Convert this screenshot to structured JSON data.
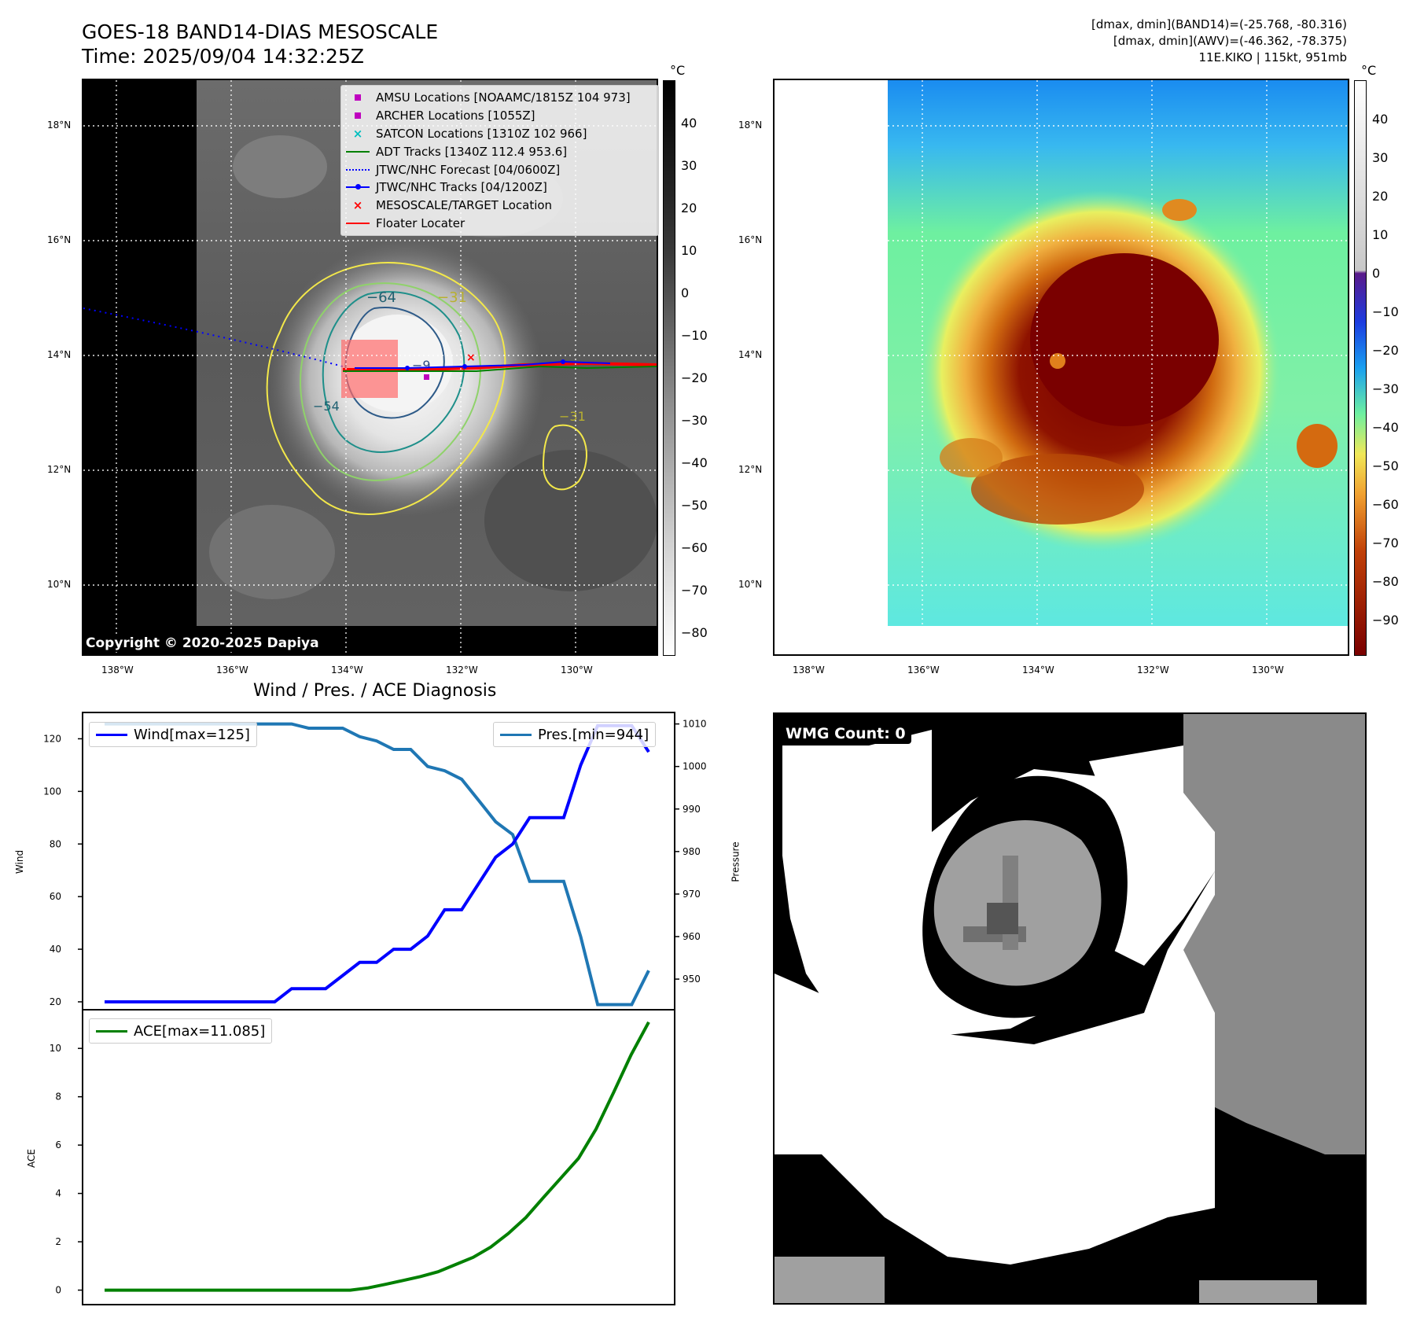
{
  "header": {
    "title": "GOES-18 BAND14-DIAS MESOSCALE",
    "time": "Time: 2025/09/04 14:32:25Z",
    "dmax_band14": "[dmax, dmin](BAND14)=(-25.768, -80.316)",
    "dmax_awv": "[dmax, dmin](AWV)=(-46.362, -78.375)",
    "storm": "11E.KIKO | 115kt, 951mb"
  },
  "map_left": {
    "lat_labels": [
      "18°N",
      "16°N",
      "14°N",
      "12°N",
      "10°N"
    ],
    "lon_labels": [
      "138°W",
      "136°W",
      "134°W",
      "132°W",
      "130°W"
    ],
    "copyright": "Copyright © 2020-2025 Dapiya",
    "colorbar_unit": "°C",
    "colorbar_ticks": [
      "40",
      "30",
      "20",
      "10",
      "0",
      "−10",
      "−20",
      "−30",
      "−40",
      "−50",
      "−60",
      "−70",
      "−80"
    ],
    "contour_labels": [
      "−64",
      "−31",
      "−54",
      "−9",
      "−31"
    ],
    "legend": [
      {
        "label": "AMSU Locations [NOAAMC/1815Z 104 973]",
        "icon": "square-marker",
        "color": "#bf00bf"
      },
      {
        "label": "ARCHER Locations [1055Z]",
        "icon": "square-marker",
        "color": "#bf00bf"
      },
      {
        "label": "SATCON Locations [1310Z 102 966]",
        "icon": "x-marker",
        "color": "#00bfbf"
      },
      {
        "label": "ADT Tracks [1340Z 112.4 953.6]",
        "icon": "solid-line",
        "color": "#008000"
      },
      {
        "label": "JTWC/NHC Forecast [04/0600Z]",
        "icon": "dotted-line",
        "color": "#0000ff"
      },
      {
        "label": "JTWC/NHC Tracks [04/1200Z]",
        "icon": "line-with-dot",
        "color": "#0000ff"
      },
      {
        "label": "MESOSCALE/TARGET Location",
        "icon": "x-marker",
        "color": "#ff0000"
      },
      {
        "label": "Floater Locater",
        "icon": "solid-line",
        "color": "#ff0000"
      }
    ]
  },
  "map_right": {
    "lat_labels": [
      "18°N",
      "16°N",
      "14°N",
      "12°N",
      "10°N"
    ],
    "lon_labels": [
      "138°W",
      "136°W",
      "134°W",
      "132°W",
      "130°W"
    ],
    "colorbar_unit": "°C",
    "colorbar_ticks": [
      "40",
      "30",
      "20",
      "10",
      "0",
      "−10",
      "−20",
      "−30",
      "−40",
      "−50",
      "−60",
      "−70",
      "−80",
      "−90"
    ]
  },
  "diagnosis": {
    "title": "Wind / Pres. / ACE Diagnosis",
    "wind_axis_label": "Wind",
    "pressure_axis_label": "Pressure",
    "ace_axis_label": "ACE",
    "wind_legend": "Wind[max=125]",
    "pres_legend": "Pres.[min=944]",
    "ace_legend": "ACE[max=11.085]",
    "wind_ticks": [
      "120",
      "100",
      "80",
      "60",
      "40",
      "20"
    ],
    "pres_ticks": [
      "1010",
      "1000",
      "990",
      "980",
      "970",
      "960",
      "950"
    ],
    "ace_ticks": [
      "10",
      "8",
      "6",
      "4",
      "2",
      "0"
    ]
  },
  "wmg": {
    "label": "WMG Count: 0"
  },
  "colors": {
    "wind": "#0000ff",
    "pressure": "#1f77b4",
    "ace": "#008000"
  },
  "chart_data": [
    {
      "type": "line",
      "title": "Wind / Pres. / ACE Diagnosis",
      "ylabel": "Wind",
      "ylim": [
        17,
        130
      ],
      "series": [
        {
          "name": "Wind[max=125]",
          "values": [
            20,
            20,
            20,
            20,
            20,
            20,
            20,
            20,
            20,
            20,
            20,
            25,
            25,
            25,
            30,
            35,
            35,
            40,
            40,
            45,
            55,
            55,
            65,
            75,
            80,
            90,
            90,
            90,
            110,
            125,
            125,
            125,
            115
          ]
        }
      ]
    },
    {
      "type": "line",
      "ylabel": "Pressure",
      "series": [
        {
          "name": "Pres.[min=944]",
          "values": [
            1010,
            1010,
            1010,
            1010,
            1010,
            1010,
            1010,
            1010,
            1010,
            1010,
            1010,
            1010,
            1009,
            1009,
            1009,
            1007,
            1006,
            1004,
            1004,
            1000,
            999,
            997,
            992,
            987,
            984,
            973,
            973,
            973,
            960,
            944,
            944,
            944,
            952
          ]
        }
      ]
    },
    {
      "type": "line",
      "ylabel": "ACE",
      "ylim": [
        -0.6,
        11.6
      ],
      "series": [
        {
          "name": "ACE[max=11.085]",
          "values": [
            0,
            0,
            0,
            0,
            0,
            0,
            0,
            0,
            0,
            0,
            0,
            0,
            0,
            0,
            0,
            0.09,
            0.24,
            0.4,
            0.56,
            0.76,
            1.06,
            1.36,
            1.78,
            2.34,
            3.0,
            3.83,
            4.64,
            5.45,
            6.66,
            8.18,
            9.74,
            11.085
          ]
        }
      ]
    }
  ]
}
